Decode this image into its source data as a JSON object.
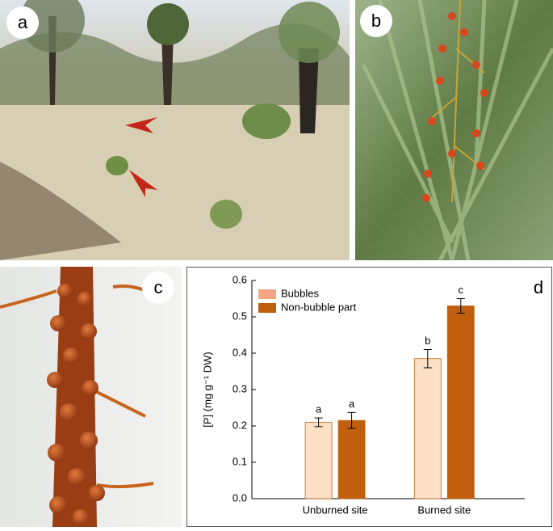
{
  "panels": [
    "a",
    "b",
    "c",
    "d"
  ],
  "chart_data": {
    "type": "bar",
    "y_label": "[P] (mg g⁻¹ DW)",
    "categories": [
      "Unburned site",
      "Burned site"
    ],
    "series": [
      {
        "name": "Bubbles",
        "color": "#fde0c6",
        "values": [
          0.21,
          0.385
        ],
        "errors": [
          0.012,
          0.025
        ],
        "letters": [
          "a",
          "b"
        ]
      },
      {
        "name": "Non-bubble part",
        "color": "#c0600e",
        "values": [
          0.215,
          0.53
        ],
        "errors": [
          0.022,
          0.02
        ],
        "letters": [
          "a",
          "c"
        ]
      }
    ],
    "ylim": [
      0,
      0.6
    ],
    "yticks": [
      {
        "value": 0,
        "label": "0.0"
      },
      0.1,
      0.2,
      0.3,
      0.4,
      0.5,
      0.6
    ],
    "legend": "upper left"
  }
}
